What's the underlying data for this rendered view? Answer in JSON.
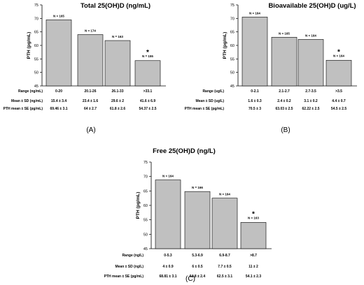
{
  "chart_data": [
    {
      "type": "bar",
      "panel_label": "(A)",
      "title": "Total 25(OH)D (ng/mL)",
      "ylabel": "PTH (pg/mL)",
      "ylim": [
        45,
        75
      ],
      "yticks": [
        "45",
        "50",
        "55",
        "60",
        "65",
        "70",
        "75"
      ],
      "categories": [
        "0-20",
        "20.1-26",
        "26.1-33",
        ">33.1"
      ],
      "values": [
        69.46,
        64,
        61.8,
        54.37
      ],
      "n_labels": [
        "N = 165",
        "N = 174",
        "N = 163",
        "N = 155"
      ],
      "significant": [
        false,
        false,
        false,
        true
      ],
      "asterisk": "*",
      "table": [
        {
          "label": "Range (ng/mL)",
          "cells": [
            "0-20",
            "20.1-26",
            "26.1-33",
            ">33.1"
          ]
        },
        {
          "label": "Mean ± SD (ng/mL)",
          "cells": [
            "15.4 ± 3.4",
            "23.4 ± 1.6",
            "29.6 ± 2",
            "41.6 ± 6.9"
          ]
        },
        {
          "label": "PTH mean ± SE (pg/mL)",
          "cells": [
            "69.46 ± 3.1",
            "64 ± 2.7",
            "61.8 ± 2.6",
            "54.37 ± 2.5"
          ]
        }
      ]
    },
    {
      "type": "bar",
      "panel_label": "(B)",
      "title": "Bioavailable 25(OH)D (ug/L)",
      "ylabel": "PTH (pg/mL)",
      "ylim": [
        45,
        75
      ],
      "yticks": [
        "45",
        "50",
        "55",
        "60",
        "65",
        "70",
        "75"
      ],
      "categories": [
        "0-2.1",
        "2.1-2.7",
        "2.7-3.5",
        ">3.5"
      ],
      "values": [
        70.5,
        63.03,
        62.22,
        54.5
      ],
      "n_labels": [
        "N = 164",
        "N = 165",
        "N = 164",
        "N = 164"
      ],
      "significant": [
        false,
        false,
        false,
        true
      ],
      "asterisk": "*",
      "table": [
        {
          "label": "Range (ug/L)",
          "cells": [
            "0-2.1",
            "2.1-2.7",
            "2.7-3.5",
            ">3.5"
          ]
        },
        {
          "label": "Mean ± SD (ug/L)",
          "cells": [
            "1.6 ± 0.3",
            "2.4 ± 0.2",
            "3.1 ± 0.2",
            "4.4 ± 0.7"
          ]
        },
        {
          "label": "PTH mean ± SE (pg/mL)",
          "cells": [
            "70.5 ± 3",
            "63.03 ± 2.5",
            "62.22 ± 2.5",
            "54.5 ± 2.5"
          ]
        }
      ]
    },
    {
      "type": "bar",
      "panel_label": "(C)",
      "title": "Free 25(OH)D (ng/L)",
      "ylabel": "PTH (pg/mL)",
      "ylim": [
        45,
        75
      ],
      "yticks": [
        "45",
        "50",
        "55",
        "60",
        "65",
        "70",
        "75"
      ],
      "categories": [
        "0-5.3",
        "5.3-6.9",
        "6.9-8.7",
        ">8.7"
      ],
      "values": [
        68.81,
        64.8,
        62.5,
        54.1
      ],
      "n_labels": [
        "N = 164",
        "N = 166",
        "N = 164",
        "N = 163"
      ],
      "significant": [
        false,
        false,
        false,
        true
      ],
      "asterisk": "*",
      "table": [
        {
          "label": "Range (ng/L)",
          "cells": [
            "0-5.3",
            "5.3-6.9",
            "6.9-8.7",
            ">8.7"
          ]
        },
        {
          "label": "Mean ± SD (ng/L)",
          "cells": [
            "4 ± 0.9",
            "6 ± 0.5",
            "7.7 ± 0.5",
            "11 ± 2"
          ]
        },
        {
          "label": "PTH mean ± SE (pg/mL)",
          "cells": [
            "68.81 ± 3.1",
            "64.8 ± 2.4",
            "62.5 ± 3.1",
            "54.1 ± 2.3"
          ]
        }
      ]
    }
  ],
  "colors": {
    "bar_fill": "#c0c0c0",
    "bar_stroke": "#000000",
    "axis": "#000000"
  }
}
